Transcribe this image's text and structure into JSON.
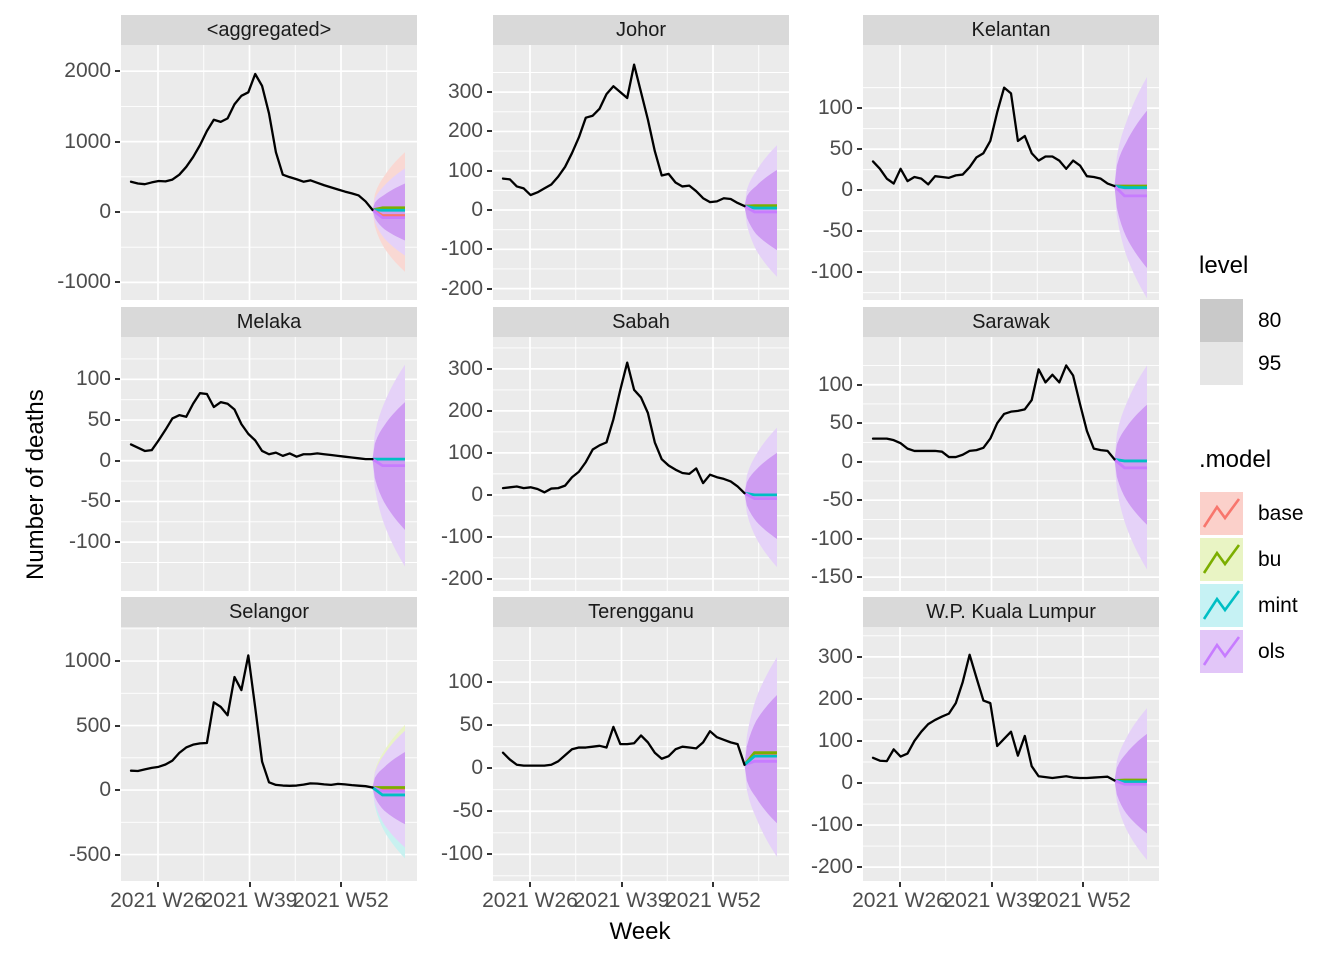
{
  "figure": {
    "y_axis_title": "Number of deaths",
    "x_axis_title": "Week"
  },
  "legend": {
    "level": {
      "title": "level",
      "entries": [
        {
          "label": "80",
          "fill": "#c9c9c9"
        },
        {
          "label": "95",
          "fill": "#e6e6e6"
        }
      ]
    },
    "model": {
      "title": ".model",
      "entries": [
        {
          "label": "base",
          "color": "#F8766D",
          "fill": "#FBD0CA"
        },
        {
          "label": "bu",
          "color": "#7CAE00",
          "fill": "#E9F4C4"
        },
        {
          "label": "mint",
          "color": "#00BFC4",
          "fill": "#C6F2F4"
        },
        {
          "label": "ols",
          "color": "#C77CFF",
          "fill": "#E2C6F8"
        }
      ]
    }
  },
  "colors": {
    "panel_bg": "#EBEBEB",
    "strip_bg": "#D9D9D9",
    "grid": "#FFFFFF",
    "obs_line": "#000000",
    "axis_text": "#4D4D4D",
    "model_colors": {
      "base": "#F8766D",
      "bu": "#7CAE00",
      "mint": "#00BFC4",
      "ols": "#C77CFF"
    },
    "band_fills": {
      "base95": "#F9D8D3",
      "bu95": "#E9F3C6",
      "mint95": "#C8F1F0",
      "ols95": "#E5D2F8",
      "ols80": "#CE9CF2"
    }
  },
  "chart_data": {
    "type": "line",
    "title": "",
    "xlabel": "Week",
    "ylabel": "Number of deaths",
    "x_tick_labels": [
      "2021 W26",
      "2021 W39",
      "2021 W52"
    ],
    "legend_levels": [
      80,
      95
    ],
    "legend_models": [
      "base",
      "bu",
      "mint",
      "ols"
    ],
    "facets": [
      {
        "name": "<aggregated>",
        "yticks": [
          2000,
          1000,
          0,
          -1000
        ],
        "ylim": [
          -1250,
          2372
        ],
        "series": [
          430,
          405,
          395,
          420,
          440,
          435,
          460,
          530,
          640,
          780,
          950,
          1150,
          1310,
          1280,
          1330,
          1530,
          1650,
          1700,
          1960,
          1790,
          1400,
          850,
          530,
          495,
          465,
          430,
          450,
          415,
          380,
          350,
          320,
          290,
          265,
          235,
          150,
          30
        ],
        "fan": {
          "center": 0,
          "bands": [
            {
              "model": "base",
              "level": 95,
              "u": 850,
              "d": 850
            },
            {
              "model": "ols",
              "level": 95,
              "u": 620,
              "d": 620
            },
            {
              "model": "ols",
              "level": 80,
              "u": 405,
              "d": 405
            }
          ],
          "lines": [
            {
              "model": "bu",
              "y": 60
            },
            {
              "model": "mint",
              "y": 25
            },
            {
              "model": "base",
              "y": -50
            },
            {
              "model": "ols",
              "y": -80
            }
          ]
        }
      },
      {
        "name": "Johor",
        "yticks": [
          300,
          200,
          100,
          0,
          -100,
          -200
        ],
        "ylim": [
          -229,
          420
        ],
        "series": [
          80,
          78,
          60,
          55,
          38,
          45,
          55,
          65,
          85,
          110,
          145,
          185,
          235,
          240,
          258,
          295,
          315,
          300,
          285,
          370,
          300,
          230,
          150,
          88,
          92,
          70,
          60,
          62,
          48,
          30,
          20,
          22,
          30,
          28,
          18,
          10
        ],
        "fan": {
          "center": 0,
          "bands": [
            {
              "model": "ols",
              "level": 95,
              "u": 165,
              "d": 170
            },
            {
              "model": "ols",
              "level": 80,
              "u": 102,
              "d": 102
            }
          ],
          "lines": [
            {
              "model": "base",
              "y": 9
            },
            {
              "model": "bu",
              "y": 11
            },
            {
              "model": "mint",
              "y": 5
            },
            {
              "model": "ols",
              "y": -5
            }
          ]
        }
      },
      {
        "name": "Kelantan",
        "yticks": [
          100,
          50,
          0,
          -50,
          -100
        ],
        "ylim": [
          -134,
          177
        ],
        "series": [
          35,
          26,
          14,
          8,
          26,
          11,
          16,
          14,
          7,
          17,
          16,
          15,
          18,
          19,
          28,
          40,
          45,
          60,
          95,
          125,
          118,
          60,
          66,
          45,
          36,
          41,
          41,
          36,
          26,
          36,
          30,
          17,
          16,
          14,
          8,
          5
        ],
        "fan": {
          "center": 0,
          "bands": [
            {
              "model": "ols",
              "level": 95,
              "u": 138,
              "d": 132
            },
            {
              "model": "ols",
              "level": 80,
              "u": 97,
              "d": 95
            }
          ],
          "lines": [
            {
              "model": "bu",
              "y": 5
            },
            {
              "model": "mint",
              "y": 3
            },
            {
              "model": "ols",
              "y": -7
            }
          ]
        }
      },
      {
        "name": "Melaka",
        "yticks": [
          100,
          50,
          0,
          -50,
          -100
        ],
        "ylim": [
          -160,
          152
        ],
        "series": [
          20,
          16,
          12,
          13,
          25,
          38,
          52,
          56,
          54,
          70,
          83,
          82,
          66,
          72,
          70,
          63,
          45,
          33,
          25,
          12,
          8,
          10,
          6,
          9,
          5,
          8,
          8,
          9,
          8,
          7,
          6,
          5,
          4,
          3,
          2,
          2
        ],
        "fan": {
          "center": 0,
          "bands": [
            {
              "model": "ols",
              "level": 95,
              "u": 118,
              "d": 130
            },
            {
              "model": "ols",
              "level": 80,
              "u": 72,
              "d": 85
            }
          ],
          "lines": [
            {
              "model": "mint",
              "y": 2
            },
            {
              "model": "ols",
              "y": -6
            }
          ]
        }
      },
      {
        "name": "Sabah",
        "yticks": [
          300,
          200,
          100,
          0,
          -100,
          -200
        ],
        "ylim": [
          -229,
          376
        ],
        "series": [
          16,
          18,
          20,
          16,
          18,
          14,
          6,
          15,
          16,
          22,
          42,
          55,
          78,
          108,
          118,
          125,
          180,
          250,
          315,
          250,
          232,
          195,
          125,
          85,
          70,
          60,
          52,
          50,
          63,
          28,
          48,
          42,
          38,
          32,
          20,
          4
        ],
        "fan": {
          "center": 0,
          "bands": [
            {
              "model": "ols",
              "level": 95,
              "u": 160,
              "d": 172
            },
            {
              "model": "ols",
              "level": 80,
              "u": 100,
              "d": 105
            }
          ],
          "lines": [
            {
              "model": "mint",
              "y": 0
            },
            {
              "model": "ols",
              "y": -9
            }
          ]
        }
      },
      {
        "name": "Sarawak",
        "yticks": [
          100,
          50,
          0,
          -50,
          -100,
          -150
        ],
        "ylim": [
          -168,
          162
        ],
        "series": [
          30,
          30,
          30,
          28,
          24,
          17,
          14,
          14,
          14,
          14,
          13,
          6,
          6,
          9,
          14,
          15,
          18,
          30,
          50,
          62,
          65,
          66,
          68,
          80,
          120,
          103,
          113,
          103,
          125,
          112,
          75,
          40,
          17,
          15,
          14,
          3
        ],
        "fan": {
          "center": 0,
          "bands": [
            {
              "model": "ols",
              "level": 95,
              "u": 125,
              "d": 140
            },
            {
              "model": "ols",
              "level": 80,
              "u": 74,
              "d": 82
            }
          ],
          "lines": [
            {
              "model": "mint",
              "y": 1
            },
            {
              "model": "ols",
              "y": -8
            }
          ]
        }
      },
      {
        "name": "Selangor",
        "yticks": [
          1000,
          500,
          0,
          -500
        ],
        "ylim": [
          -705,
          1264
        ],
        "series": [
          150,
          148,
          160,
          172,
          180,
          198,
          228,
          288,
          330,
          352,
          362,
          365,
          680,
          645,
          580,
          876,
          775,
          1044,
          640,
          220,
          60,
          40,
          35,
          33,
          35,
          42,
          52,
          50,
          44,
          40,
          48,
          44,
          38,
          34,
          30,
          20
        ],
        "fan": {
          "center": 0,
          "bands": [
            {
              "model": "mint",
              "level": 95,
              "u": 380,
              "d": 530
            },
            {
              "model": "bu",
              "level": 95,
              "u": 505,
              "d": 380
            },
            {
              "model": "ols",
              "level": 95,
              "u": 460,
              "d": 445
            },
            {
              "model": "ols",
              "level": 80,
              "u": 295,
              "d": 265
            }
          ],
          "lines": [
            {
              "model": "base",
              "y": 8
            },
            {
              "model": "bu",
              "y": 20
            },
            {
              "model": "ols",
              "y": -8
            },
            {
              "model": "mint",
              "y": -38
            }
          ]
        }
      },
      {
        "name": "Terengganu",
        "yticks": [
          100,
          50,
          0,
          -50,
          -100
        ],
        "ylim": [
          -131,
          164
        ],
        "series": [
          18,
          10,
          4,
          3,
          3,
          3,
          3,
          4,
          8,
          15,
          22,
          24,
          24,
          25,
          26,
          24,
          48,
          28,
          28,
          29,
          38,
          30,
          18,
          11,
          14,
          22,
          25,
          24,
          23,
          30,
          43,
          36,
          33,
          30,
          28,
          4
        ],
        "fan": {
          "center": 10,
          "bands": [
            {
              "model": "ols",
              "level": 95,
              "u": 119,
              "d": 113
            },
            {
              "model": "ols",
              "level": 80,
              "u": 75,
              "d": 74
            }
          ],
          "lines": [
            {
              "model": "ols",
              "y": 8
            },
            {
              "model": "base",
              "y": 15
            },
            {
              "model": "bu",
              "y": 18
            },
            {
              "model": "mint",
              "y": 14
            }
          ]
        }
      },
      {
        "name": "W.P. Kuala Lumpur",
        "yticks": [
          300,
          200,
          100,
          0,
          -100,
          -200
        ],
        "ylim": [
          -233,
          371
        ],
        "series": [
          60,
          53,
          52,
          80,
          63,
          70,
          100,
          122,
          140,
          150,
          158,
          165,
          190,
          240,
          305,
          250,
          196,
          190,
          88,
          105,
          122,
          65,
          112,
          40,
          16,
          14,
          12,
          14,
          16,
          13,
          12,
          12,
          13,
          14,
          15,
          6
        ],
        "fan": {
          "center": 0,
          "bands": [
            {
              "model": "ols",
              "level": 95,
              "u": 178,
              "d": 183
            },
            {
              "model": "ols",
              "level": 80,
              "u": 117,
              "d": 120
            }
          ],
          "lines": [
            {
              "model": "bu",
              "y": 7
            },
            {
              "model": "mint",
              "y": 3
            },
            {
              "model": "ols",
              "y": -3
            }
          ]
        }
      }
    ]
  }
}
